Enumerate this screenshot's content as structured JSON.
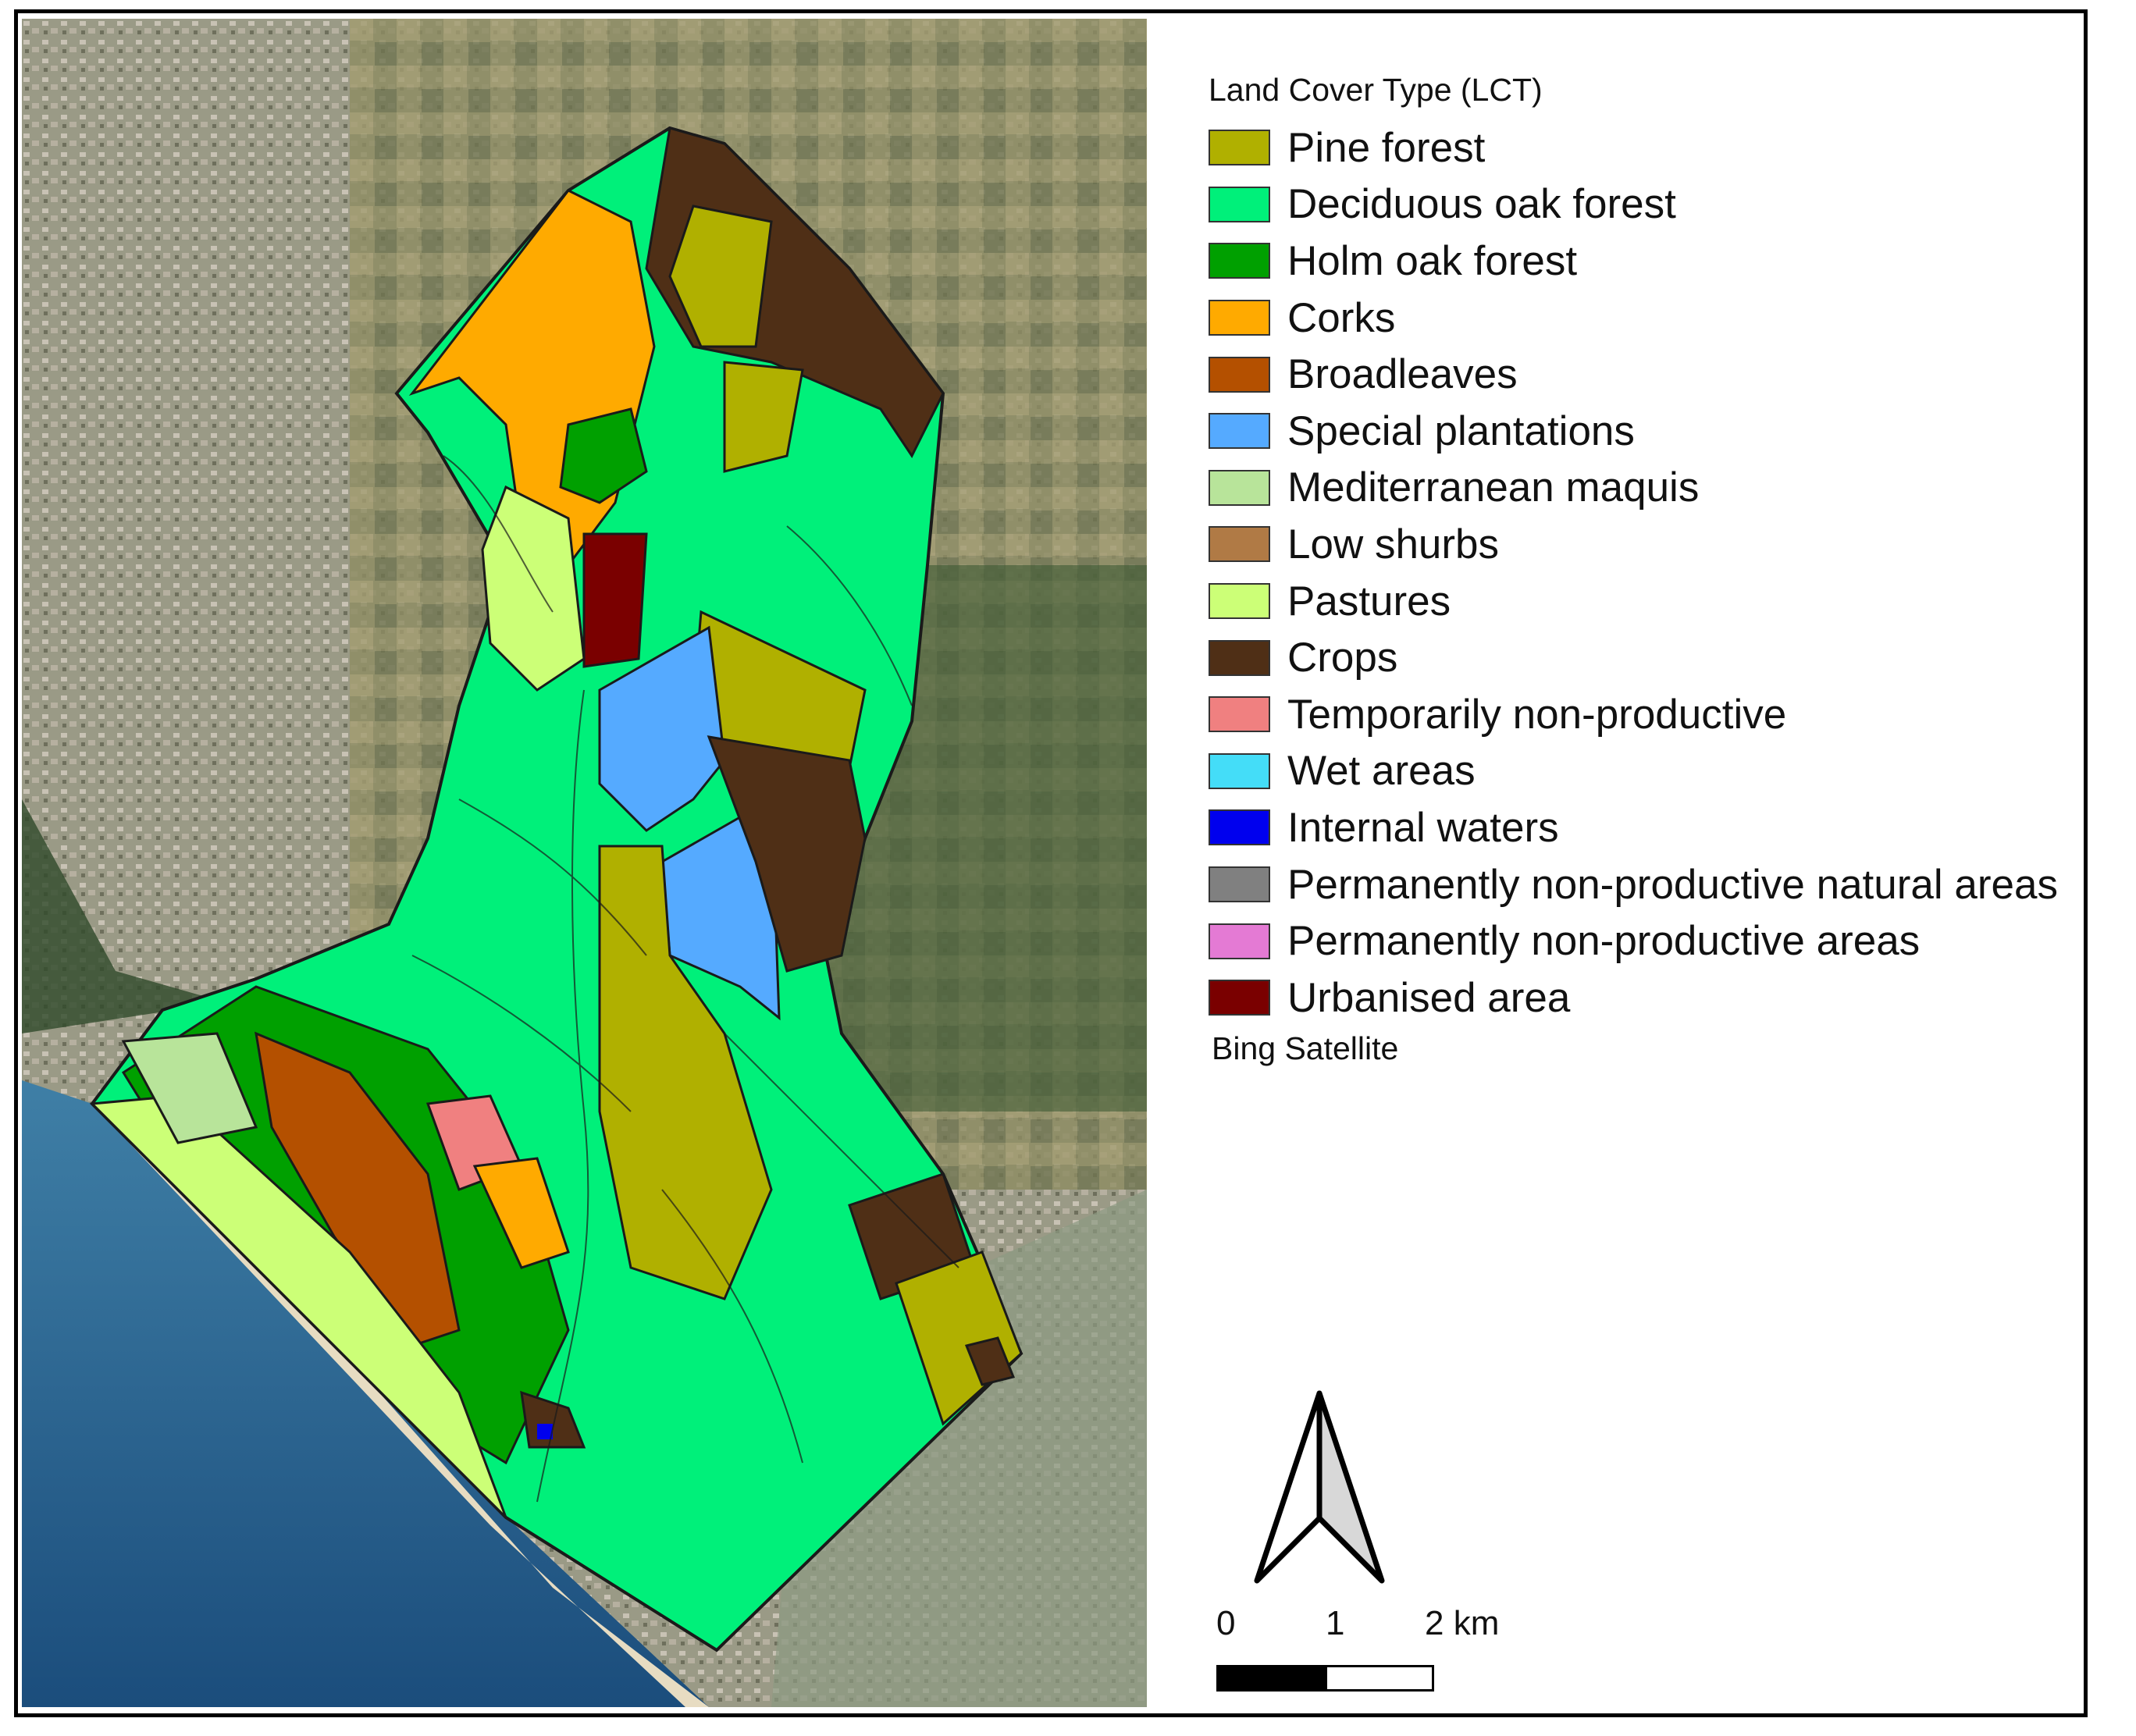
{
  "legend": {
    "title": "Land Cover Type (LCT)",
    "items": [
      {
        "label": "Pine forest",
        "color": "#b0b000"
      },
      {
        "label": "Deciduous oak forest",
        "color": "#00f07a"
      },
      {
        "label": "Holm oak forest",
        "color": "#00a000"
      },
      {
        "label": "Corks",
        "color": "#ffaa00"
      },
      {
        "label": "Broadleaves",
        "color": "#b45000"
      },
      {
        "label": "Special plantations",
        "color": "#55aaff"
      },
      {
        "label": "Mediterranean maquis",
        "color": "#b8e49a"
      },
      {
        "label": "Low shurbs",
        "color": "#b07a45"
      },
      {
        "label": "Pastures",
        "color": "#ccff77"
      },
      {
        "label": "Crops",
        "color": "#4f2f16"
      },
      {
        "label": "Temporarily non-productive",
        "color": "#f08080"
      },
      {
        "label": "Wet areas",
        "color": "#44ddf8"
      },
      {
        "label": "Internal waters",
        "color": "#0000ee"
      },
      {
        "label": "Permanently non-productive natural areas",
        "color": "#808080"
      },
      {
        "label": "Permanently non-productive areas",
        "color": "#e47ad4"
      },
      {
        "label": "Urbanised area",
        "color": "#7a0000"
      }
    ]
  },
  "basemap_label": "Bing Satellite",
  "scale_bar": {
    "labels": [
      "0",
      "1",
      "2 km"
    ]
  },
  "north_arrow": {
    "icon": "north-arrow-icon"
  }
}
